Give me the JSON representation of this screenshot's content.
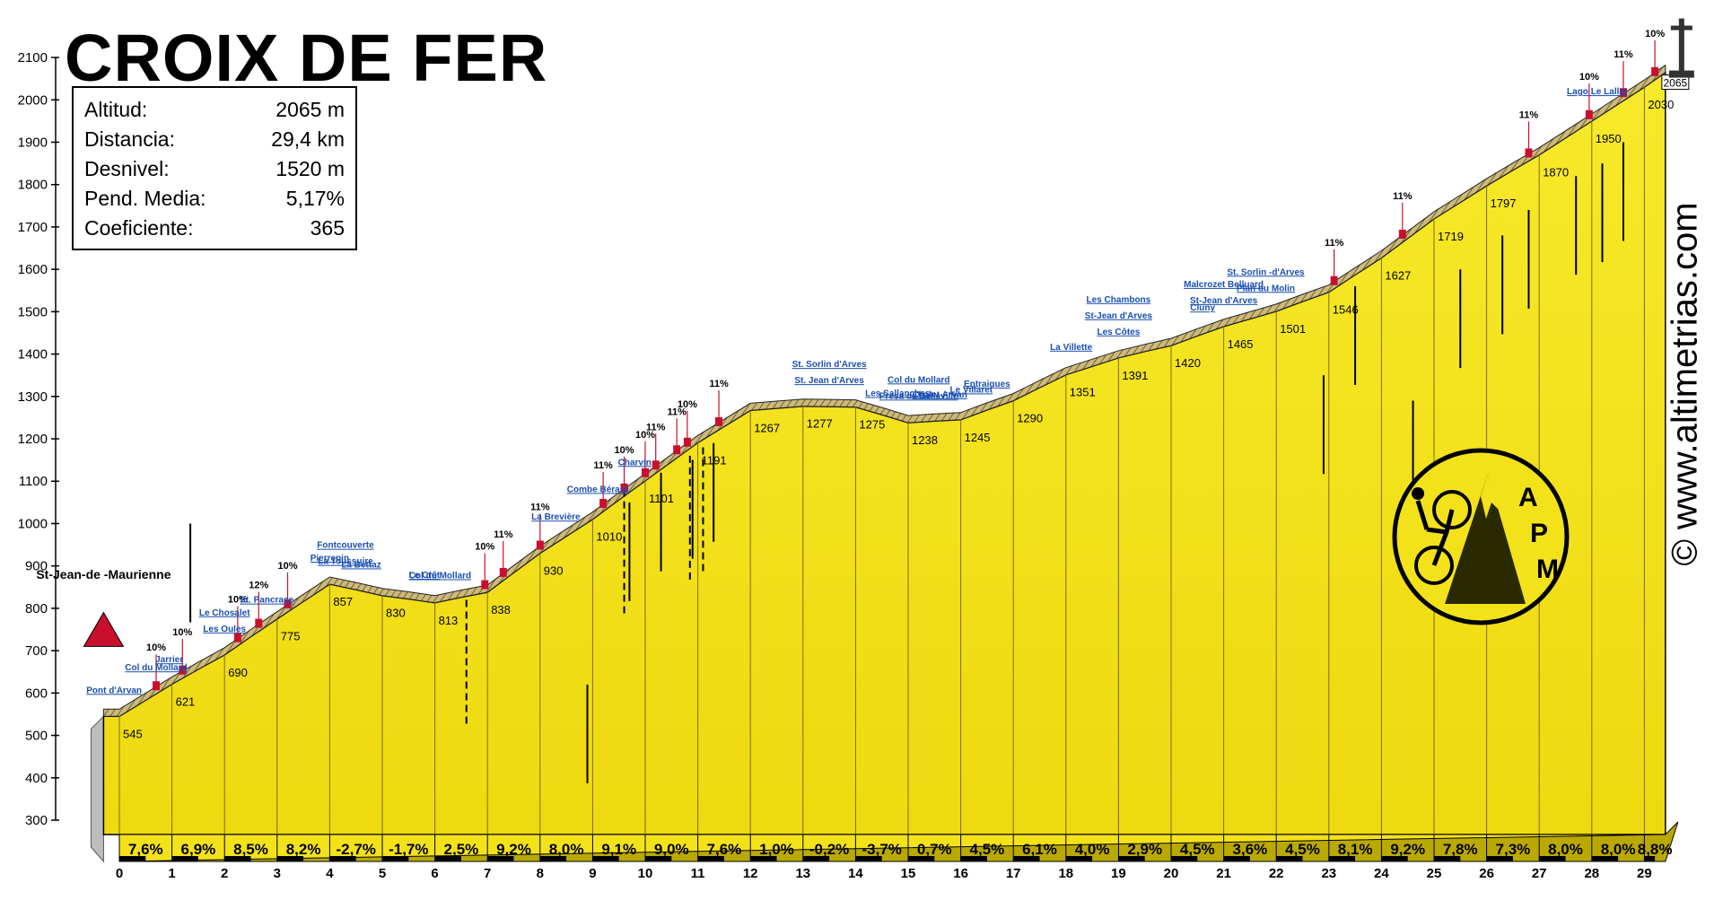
{
  "page": {
    "title": "CROIX DE FER",
    "stats": [
      {
        "label": "Altitud:",
        "value": "2065 m"
      },
      {
        "label": "Distancia:",
        "value": "29,4 km"
      },
      {
        "label": "Desnivel:",
        "value": "1520 m"
      },
      {
        "label": "Pend. Media:",
        "value": "5,17%"
      },
      {
        "label": "Coeficiente:",
        "value": "365"
      }
    ],
    "website": "© www.altimetrias.com",
    "logo_text": [
      "A",
      "P",
      "M"
    ]
  },
  "chart_data": {
    "type": "area",
    "title": "CROIX DE FER",
    "ylim": [
      300,
      2100
    ],
    "yticks": [
      300,
      400,
      500,
      600,
      700,
      800,
      900,
      1000,
      1100,
      1200,
      1300,
      1400,
      1500,
      1600,
      1700,
      1800,
      1900,
      2000,
      2100
    ],
    "xlim": [
      0,
      29.4
    ],
    "xticks": [
      0,
      1,
      2,
      3,
      4,
      5,
      6,
      7,
      8,
      9,
      10,
      11,
      12,
      13,
      14,
      15,
      16,
      17,
      18,
      19,
      20,
      21,
      22,
      23,
      24,
      25,
      26,
      27,
      28,
      29
    ],
    "profile": [
      {
        "x": -0.3,
        "y": 545
      },
      {
        "x": 0,
        "y": 545
      },
      {
        "x": 0.5,
        "y": 583
      },
      {
        "x": 1,
        "y": 621
      },
      {
        "x": 1.5,
        "y": 656
      },
      {
        "x": 2,
        "y": 690
      },
      {
        "x": 2.5,
        "y": 733
      },
      {
        "x": 3,
        "y": 775
      },
      {
        "x": 3.5,
        "y": 816
      },
      {
        "x": 4,
        "y": 857
      },
      {
        "x": 4.5,
        "y": 844
      },
      {
        "x": 5,
        "y": 830
      },
      {
        "x": 5.5,
        "y": 822
      },
      {
        "x": 6,
        "y": 813
      },
      {
        "x": 6.5,
        "y": 826
      },
      {
        "x": 7,
        "y": 838
      },
      {
        "x": 7.5,
        "y": 884
      },
      {
        "x": 8,
        "y": 930
      },
      {
        "x": 8.5,
        "y": 970
      },
      {
        "x": 9,
        "y": 1010
      },
      {
        "x": 9.5,
        "y": 1056
      },
      {
        "x": 10,
        "y": 1101
      },
      {
        "x": 10.5,
        "y": 1146
      },
      {
        "x": 11,
        "y": 1191
      },
      {
        "x": 11.5,
        "y": 1229
      },
      {
        "x": 12,
        "y": 1267
      },
      {
        "x": 12.5,
        "y": 1272
      },
      {
        "x": 13,
        "y": 1277
      },
      {
        "x": 13.5,
        "y": 1276
      },
      {
        "x": 14,
        "y": 1275
      },
      {
        "x": 14.5,
        "y": 1257
      },
      {
        "x": 15,
        "y": 1238
      },
      {
        "x": 15.5,
        "y": 1242
      },
      {
        "x": 16,
        "y": 1245
      },
      {
        "x": 16.5,
        "y": 1268
      },
      {
        "x": 17,
        "y": 1290
      },
      {
        "x": 17.5,
        "y": 1321
      },
      {
        "x": 18,
        "y": 1351
      },
      {
        "x": 18.5,
        "y": 1371
      },
      {
        "x": 19,
        "y": 1391
      },
      {
        "x": 19.5,
        "y": 1406
      },
      {
        "x": 20,
        "y": 1420
      },
      {
        "x": 20.5,
        "y": 1443
      },
      {
        "x": 21,
        "y": 1465
      },
      {
        "x": 21.5,
        "y": 1483
      },
      {
        "x": 22,
        "y": 1501
      },
      {
        "x": 22.5,
        "y": 1524
      },
      {
        "x": 23,
        "y": 1546
      },
      {
        "x": 23.5,
        "y": 1587
      },
      {
        "x": 24,
        "y": 1627
      },
      {
        "x": 24.5,
        "y": 1673
      },
      {
        "x": 25,
        "y": 1719
      },
      {
        "x": 25.5,
        "y": 1758
      },
      {
        "x": 26,
        "y": 1797
      },
      {
        "x": 26.5,
        "y": 1834
      },
      {
        "x": 27,
        "y": 1870
      },
      {
        "x": 27.5,
        "y": 1910
      },
      {
        "x": 28,
        "y": 1950
      },
      {
        "x": 28.5,
        "y": 1990
      },
      {
        "x": 29,
        "y": 2030
      },
      {
        "x": 29.4,
        "y": 2065
      }
    ],
    "km_labels": [
      {
        "x": 0,
        "label": "545"
      },
      {
        "x": 1,
        "label": "621"
      },
      {
        "x": 2,
        "label": "690"
      },
      {
        "x": 3,
        "label": "775"
      },
      {
        "x": 4,
        "label": "857"
      },
      {
        "x": 5,
        "label": "830"
      },
      {
        "x": 6,
        "label": "813"
      },
      {
        "x": 7,
        "label": "838"
      },
      {
        "x": 8,
        "label": "930"
      },
      {
        "x": 9,
        "label": "1010"
      },
      {
        "x": 10,
        "label": "1101"
      },
      {
        "x": 11,
        "label": "1191"
      },
      {
        "x": 12,
        "label": "1267"
      },
      {
        "x": 13,
        "label": "1277"
      },
      {
        "x": 14,
        "label": "1275"
      },
      {
        "x": 15,
        "label": "1238"
      },
      {
        "x": 16,
        "label": "1245"
      },
      {
        "x": 17,
        "label": "1290"
      },
      {
        "x": 18,
        "label": "1351"
      },
      {
        "x": 19,
        "label": "1391"
      },
      {
        "x": 20,
        "label": "1420"
      },
      {
        "x": 21,
        "label": "1465"
      },
      {
        "x": 22,
        "label": "1501"
      },
      {
        "x": 23,
        "label": "1546"
      },
      {
        "x": 24,
        "label": "1627"
      },
      {
        "x": 25,
        "label": "1719"
      },
      {
        "x": 26,
        "label": "1797"
      },
      {
        "x": 27,
        "label": "1870"
      },
      {
        "x": 28,
        "label": "1950"
      },
      {
        "x": 29,
        "label": "2030"
      },
      {
        "x": 29.4,
        "label": "2065"
      }
    ],
    "gradients": [
      "7,6%",
      "6,9%",
      "8,5%",
      "8,2%",
      "-2,7%",
      "-1,7%",
      "2,5%",
      "9,2%",
      "8,0%",
      "9,1%",
      "9,0%",
      "7,6%",
      "1,0%",
      "-0,2%",
      "-3,7%",
      "0,7%",
      "4,5%",
      "6,1%",
      "4,0%",
      "2,9%",
      "4,5%",
      "3,6%",
      "4,5%",
      "8,1%",
      "9,2%",
      "7,8%",
      "7,3%",
      "8,0%",
      "8,0%",
      "8,8%"
    ],
    "places": [
      {
        "x": -0.1,
        "label": "Pont d'Arvan"
      },
      {
        "x": 0.7,
        "label": "Col du Mollard"
      },
      {
        "x": 0.95,
        "label": "Jarrier"
      },
      {
        "x": 2.0,
        "label": "Les Oules"
      },
      {
        "x": 2.0,
        "label": "Le Chosalet"
      },
      {
        "x": 2.8,
        "label": "St. Pancrace"
      },
      {
        "x": 4.0,
        "label": "Pierrepin"
      },
      {
        "x": 4.3,
        "label": "La Toussuire"
      },
      {
        "x": 4.3,
        "label": "Fontcouverte"
      },
      {
        "x": 4.6,
        "label": "La Bettaz"
      },
      {
        "x": 5.8,
        "label": "Le Crêt"
      },
      {
        "x": 6.1,
        "label": "Col du Mollard"
      },
      {
        "x": 8.3,
        "label": "La Brevière"
      },
      {
        "x": 9.1,
        "label": "Combe Bérard"
      },
      {
        "x": 9.8,
        "label": "Charvin"
      },
      {
        "x": 13.5,
        "label": "St. Jean d'Arves"
      },
      {
        "x": 13.5,
        "label": "St. Sorlin d'Arves"
      },
      {
        "x": 14.8,
        "label": "Les Sallanches"
      },
      {
        "x": 15.2,
        "label": "Presa de Belleville"
      },
      {
        "x": 15.2,
        "label": "Col du Mollard"
      },
      {
        "x": 15.6,
        "label": "Chalet Arvan"
      },
      {
        "x": 16.5,
        "label": "Entraigues"
      },
      {
        "x": 16.2,
        "label": "Le Villaret"
      },
      {
        "x": 18.1,
        "label": "La Villette"
      },
      {
        "x": 19.0,
        "label": "Les Côtes"
      },
      {
        "x": 19.0,
        "label": "St-Jean d'Arves"
      },
      {
        "x": 19.0,
        "label": "Les Chambons"
      },
      {
        "x": 20.6,
        "label": "Cluny"
      },
      {
        "x": 21.0,
        "label": "St-Jean d'Arves"
      },
      {
        "x": 21.0,
        "label": "Malcrozet Belluard"
      },
      {
        "x": 21.8,
        "label": "Plan du Molin"
      },
      {
        "x": 21.8,
        "label": "St. Sorlin -d'Arves"
      },
      {
        "x": 28.1,
        "label": "Lago Le Lallet"
      }
    ],
    "start_label": "St-Jean-de -Maurienne",
    "ramp_labels": [
      {
        "x": 0.7,
        "label": "10%"
      },
      {
        "x": 1.2,
        "label": "10%"
      },
      {
        "x": 2.25,
        "label": "10%"
      },
      {
        "x": 2.65,
        "label": "12%"
      },
      {
        "x": 3.2,
        "label": "10%"
      },
      {
        "x": 6.95,
        "label": "10%"
      },
      {
        "x": 7.3,
        "label": "11%"
      },
      {
        "x": 8.0,
        "label": "11%"
      },
      {
        "x": 9.2,
        "label": "11%"
      },
      {
        "x": 9.6,
        "label": "10%"
      },
      {
        "x": 10.0,
        "label": "10%"
      },
      {
        "x": 10.2,
        "label": "11%"
      },
      {
        "x": 10.6,
        "label": "11%"
      },
      {
        "x": 10.8,
        "label": "10%"
      },
      {
        "x": 11.4,
        "label": "11%"
      },
      {
        "x": 23.1,
        "label": "11%"
      },
      {
        "x": 24.4,
        "label": "11%"
      },
      {
        "x": 26.8,
        "label": "11%"
      },
      {
        "x": 27.95,
        "label": "10%"
      },
      {
        "x": 28.6,
        "label": "11%"
      },
      {
        "x": 29.2,
        "label": "10%"
      }
    ]
  },
  "colors": {
    "fill": "#f3e21a",
    "fill_dark": "#c8b400",
    "road": "#b3a57a",
    "road_dark": "#6e6437",
    "label_blue": "#1a4fb0",
    "marker_red": "#c8102e",
    "grid": "#000000"
  }
}
